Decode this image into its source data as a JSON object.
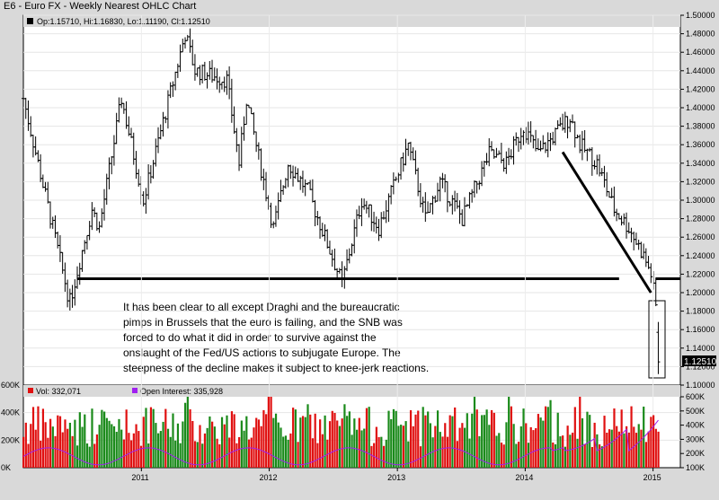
{
  "title": "E6 - Euro FX - Weekly Nearest OHLC Chart",
  "price_info": "Op:1.15710, Hi:1.16830, Lo:1.11190, Cl:1.12510",
  "last_price_label": "1.12510",
  "volume_legend": "Vol: 332,071",
  "oi_legend": "Open Interest: 335,928",
  "annotation": [
    "It has been clear to all except Draghi and the bureaucratic",
    "pimps in Brussels that the euro is failing, and the SNB was",
    "forced to do what it did in order to survive against the",
    "onslaught of the Fed/US actions to subjugate Europe.  The",
    "steepness of the decline makes it subject to knee-jerk reactions."
  ],
  "colors": {
    "up": "#1a8a1a",
    "down": "#e01010",
    "oi": "#a020f0",
    "bars": "#000000",
    "panel": "#ffffff",
    "chrome": "#d9d9d9",
    "price_box_bg": "#000000",
    "price_box_text": "#ffffff",
    "legend_vol": "#e01010",
    "legend_oi": "#a020f0"
  },
  "chart_data": [
    {
      "type": "ohlc",
      "title": "E6 - Euro FX - Weekly Nearest OHLC Chart",
      "ylim": [
        1.1,
        1.5
      ],
      "y_ticks": [
        "1.50000",
        "1.48000",
        "1.46000",
        "1.44000",
        "1.42000",
        "1.40000",
        "1.38000",
        "1.36000",
        "1.34000",
        "1.32000",
        "1.30000",
        "1.28000",
        "1.26000",
        "1.24000",
        "1.22000",
        "1.20000",
        "1.18000",
        "1.16000",
        "1.14000",
        "1.12000",
        "1.10000"
      ],
      "x_ticks": [
        "2011",
        "2012",
        "2013",
        "2014",
        "2015"
      ],
      "last_bar": {
        "open": 1.1571,
        "high": 1.1683,
        "low": 1.1119,
        "close": 1.1251
      },
      "anchors": [
        {
          "date": "2010-01-29",
          "value": 1.41
        },
        {
          "date": "2010-06-04",
          "value": 1.2
        },
        {
          "date": "2010-06-11",
          "value": 1.19
        },
        {
          "date": "2010-08-13",
          "value": 1.29
        },
        {
          "date": "2010-09-03",
          "value": 1.27
        },
        {
          "date": "2010-11-05",
          "value": 1.41
        },
        {
          "date": "2011-01-07",
          "value": 1.3
        },
        {
          "date": "2011-05-06",
          "value": 1.48
        },
        {
          "date": "2011-06-03",
          "value": 1.44
        },
        {
          "date": "2011-09-02",
          "value": 1.43
        },
        {
          "date": "2011-10-07",
          "value": 1.34
        },
        {
          "date": "2011-10-28",
          "value": 1.41
        },
        {
          "date": "2012-01-13",
          "value": 1.27
        },
        {
          "date": "2012-02-24",
          "value": 1.34
        },
        {
          "date": "2012-04-20",
          "value": 1.31
        },
        {
          "date": "2012-07-27",
          "value": 1.21
        },
        {
          "date": "2012-09-21",
          "value": 1.3
        },
        {
          "date": "2012-11-09",
          "value": 1.27
        },
        {
          "date": "2013-02-01",
          "value": 1.36
        },
        {
          "date": "2013-03-22",
          "value": 1.28
        },
        {
          "date": "2013-05-03",
          "value": 1.32
        },
        {
          "date": "2013-07-05",
          "value": 1.28
        },
        {
          "date": "2013-09-20",
          "value": 1.35
        },
        {
          "date": "2013-11-08",
          "value": 1.34
        },
        {
          "date": "2013-12-27",
          "value": 1.38
        },
        {
          "date": "2014-02-07",
          "value": 1.35
        },
        {
          "date": "2014-05-09",
          "value": 1.39
        },
        {
          "date": "2014-06-06",
          "value": 1.36
        },
        {
          "date": "2014-07-25",
          "value": 1.34
        },
        {
          "date": "2014-09-12",
          "value": 1.29
        },
        {
          "date": "2014-10-24",
          "value": 1.27
        },
        {
          "date": "2014-12-05",
          "value": 1.24
        },
        {
          "date": "2014-12-26",
          "value": 1.22
        },
        {
          "date": "2015-01-09",
          "value": 1.185
        },
        {
          "date": "2015-01-16",
          "value": 1.125
        }
      ],
      "support_line": {
        "value": 1.215,
        "from": "2010-07-02",
        "to": "2014-09-26"
      },
      "support_line_right": {
        "value": 1.215,
        "from": "2015-01-09",
        "to": "2015-03-20"
      },
      "trend_line": {
        "from": {
          "date": "2014-04-18",
          "value": 1.352
        },
        "to": {
          "date": "2014-12-26",
          "value": 1.2
        }
      }
    },
    {
      "type": "bar",
      "title": "Volume / Open Interest",
      "series": [
        {
          "name": "Vol: 332,071",
          "last_value": 332071
        },
        {
          "name": "Open Interest: 335,928",
          "last_value": 335928,
          "type": "line"
        }
      ],
      "ylim_left": [
        0,
        600000
      ],
      "y_ticks_left": [
        "600K",
        "400K",
        "200K",
        "0K"
      ],
      "ylim_right": [
        100000,
        600000
      ],
      "y_ticks_right": [
        "600K",
        "500K",
        "400K",
        "300K",
        "200K",
        "100K"
      ],
      "x_ticks": [
        "2011",
        "2012",
        "2013",
        "2014",
        "2015"
      ]
    }
  ]
}
